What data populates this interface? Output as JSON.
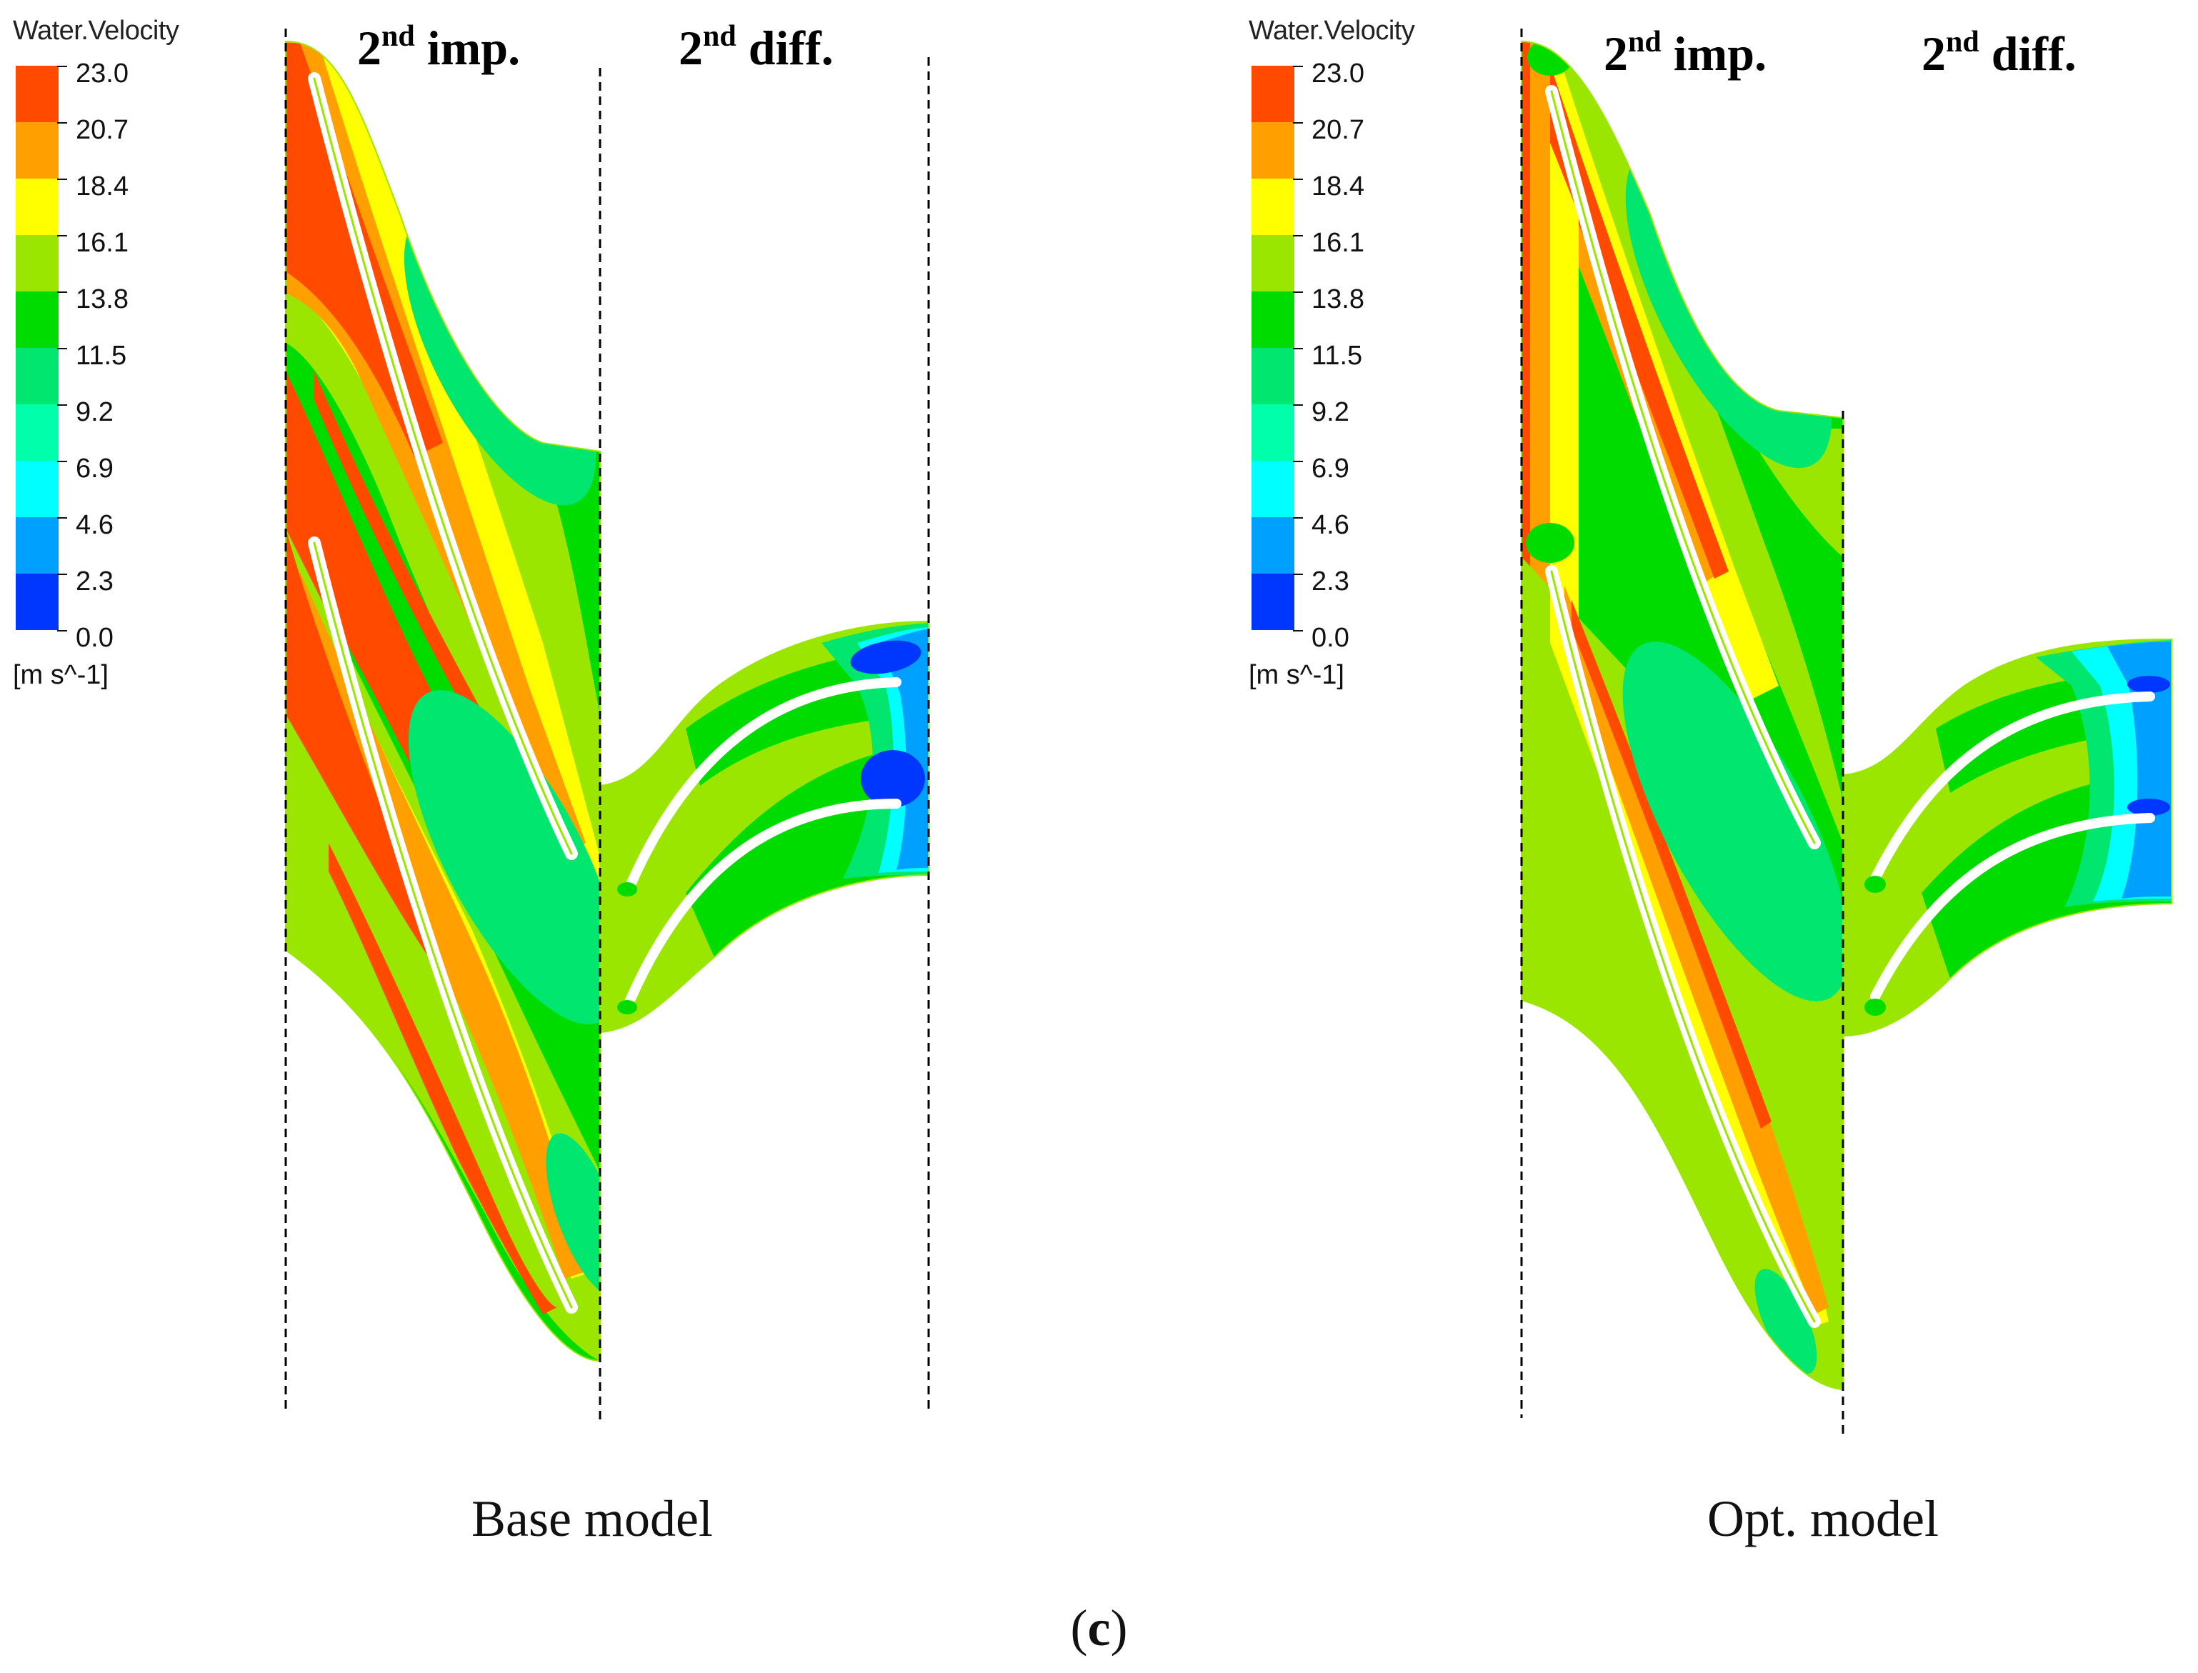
{
  "legend": {
    "title": "Water.Velocity",
    "unit": "[m s^-1]",
    "ticks": [
      "23.0",
      "20.7",
      "18.4",
      "16.1",
      "13.8",
      "11.5",
      "9.2",
      "6.9",
      "4.6",
      "2.3",
      "0.0"
    ],
    "colors": [
      "#ff4a00",
      "#ffa000",
      "#ffff00",
      "#9be600",
      "#00dc00",
      "#00e66e",
      "#00ffaa",
      "#00ffff",
      "#00a0ff",
      "#0037ff"
    ]
  },
  "panels": [
    {
      "model_label": "Base model",
      "header_impeller": {
        "prefix": "2",
        "sup": "nd",
        "text": " imp."
      },
      "header_diffuser": {
        "prefix": "2",
        "sup": "nd",
        "text": " diff."
      }
    },
    {
      "model_label": "Opt. model",
      "header_impeller": {
        "prefix": "2",
        "sup": "nd",
        "text": " imp."
      },
      "header_diffuser": {
        "prefix": "2",
        "sup": "nd",
        "text": " diff."
      }
    }
  ],
  "caption": {
    "open": "(",
    "letter": "c",
    "close": ")"
  },
  "colors": {
    "red": "#ff4a00",
    "orange": "#ffa000",
    "yellow": "#ffff00",
    "lime": "#9be600",
    "green": "#00dc00",
    "seagreen": "#00e66e",
    "aqua": "#00ffaa",
    "cyan": "#00ffff",
    "sky": "#00a0ff",
    "blue": "#0037ff"
  }
}
